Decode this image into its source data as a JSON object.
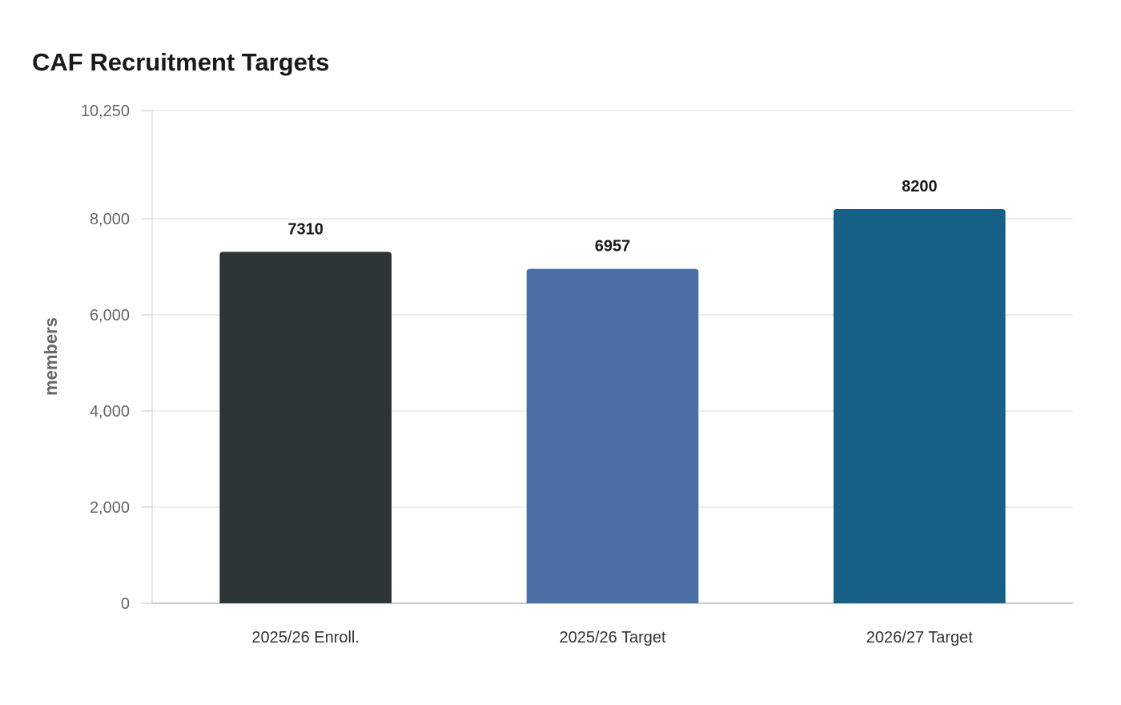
{
  "chart_data": {
    "type": "bar",
    "title": "CAF Recruitment Targets",
    "xlabel": "",
    "ylabel": "members",
    "categories": [
      "2025/26 Enroll.",
      "2025/26 Target",
      "2026/27 Target"
    ],
    "values": [
      7310,
      6957,
      8200
    ],
    "data_labels": [
      "7310",
      "6957",
      "8200"
    ],
    "colors": [
      "#2d3436",
      "#4a6fa5",
      "#166088"
    ],
    "ylim": [
      0,
      10250
    ],
    "yticks": [
      0,
      2000,
      4000,
      6000,
      8000,
      10250
    ],
    "ytick_labels": [
      "0",
      "2,000",
      "4,000",
      "6,000",
      "8,000",
      "10,250"
    ],
    "grid": true,
    "legend": "none"
  }
}
